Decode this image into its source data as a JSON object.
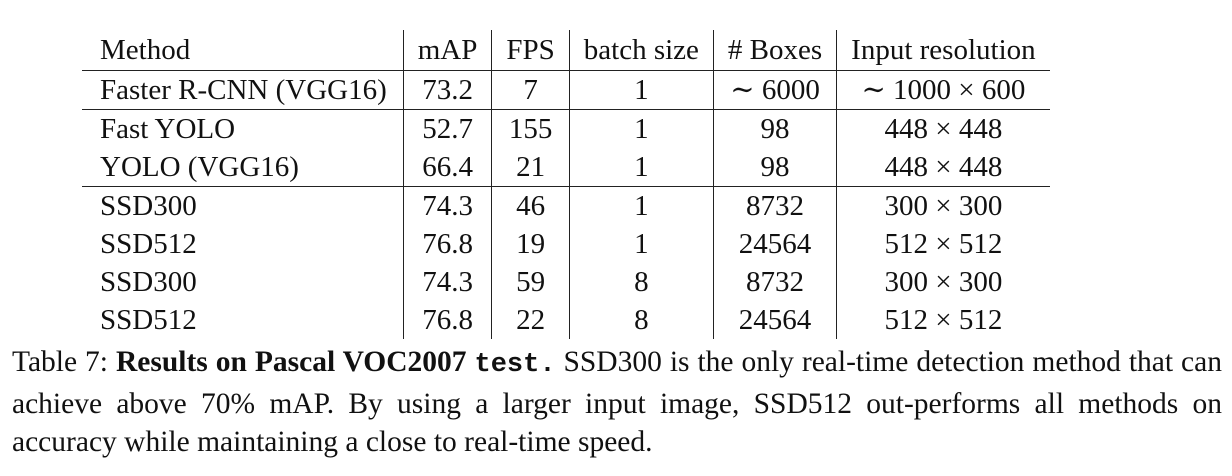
{
  "table": {
    "columns": [
      "Method",
      "mAP",
      "FPS",
      "batch size",
      "# Boxes",
      "Input resolution"
    ],
    "groups": [
      [
        {
          "method": "Faster R-CNN (VGG16)",
          "map": "73.2",
          "fps": "7",
          "batch": "1",
          "boxes": "∼ 6000",
          "resolution": "∼ 1000 × 600"
        }
      ],
      [
        {
          "method": "Fast YOLO",
          "map": "52.7",
          "fps": "155",
          "batch": "1",
          "boxes": "98",
          "resolution": "448 × 448"
        },
        {
          "method": "YOLO (VGG16)",
          "map": "66.4",
          "fps": "21",
          "batch": "1",
          "boxes": "98",
          "resolution": "448 × 448"
        }
      ],
      [
        {
          "method": "SSD300",
          "map": "74.3",
          "fps": "46",
          "batch": "1",
          "boxes": "8732",
          "resolution": "300 × 300"
        },
        {
          "method": "SSD512",
          "map": "76.8",
          "fps": "19",
          "batch": "1",
          "boxes": "24564",
          "resolution": "512 × 512"
        },
        {
          "method": "SSD300",
          "map": "74.3",
          "fps": "59",
          "batch": "8",
          "boxes": "8732",
          "resolution": "300 × 300"
        },
        {
          "method": "SSD512",
          "map": "76.8",
          "fps": "22",
          "batch": "8",
          "boxes": "24564",
          "resolution": "512 × 512"
        }
      ]
    ]
  },
  "caption": {
    "label": "Table 7: ",
    "title": "Results on Pascal VOC2007 ",
    "title_mono": "test.",
    "text": " SSD300 is the only real-time detection method that can achieve above 70% mAP. By using a larger input image, SSD512 out-performs all methods on accuracy while maintaining a close to real-time speed."
  }
}
